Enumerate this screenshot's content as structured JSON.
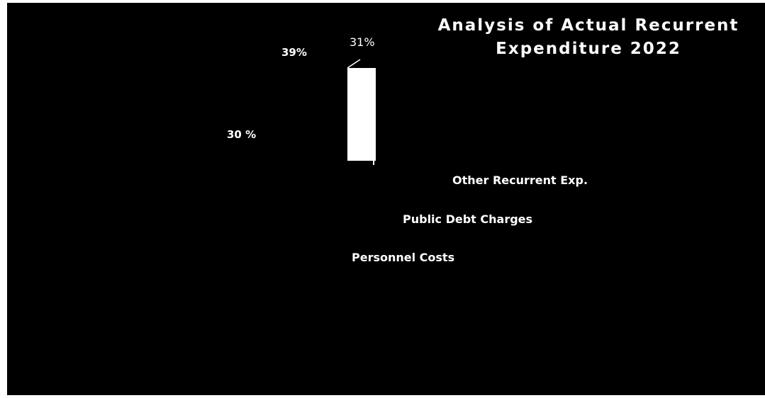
{
  "chart_data": {
    "type": "pie",
    "title": "Analysis of Actual Recurrent Expenditure 2022",
    "title_lines": [
      "Analysis of Actual Recurrent",
      "Expenditure 2022"
    ],
    "categories": [
      "Other Recurrent Exp.",
      "Public Debt Charges",
      "Personnel Costs"
    ],
    "values": [
      31,
      39,
      30
    ],
    "value_labels": [
      "31%",
      "39%",
      "30 %"
    ],
    "unit": "%",
    "legend": "none",
    "background": "#000000",
    "text_color": "#ffffff"
  }
}
